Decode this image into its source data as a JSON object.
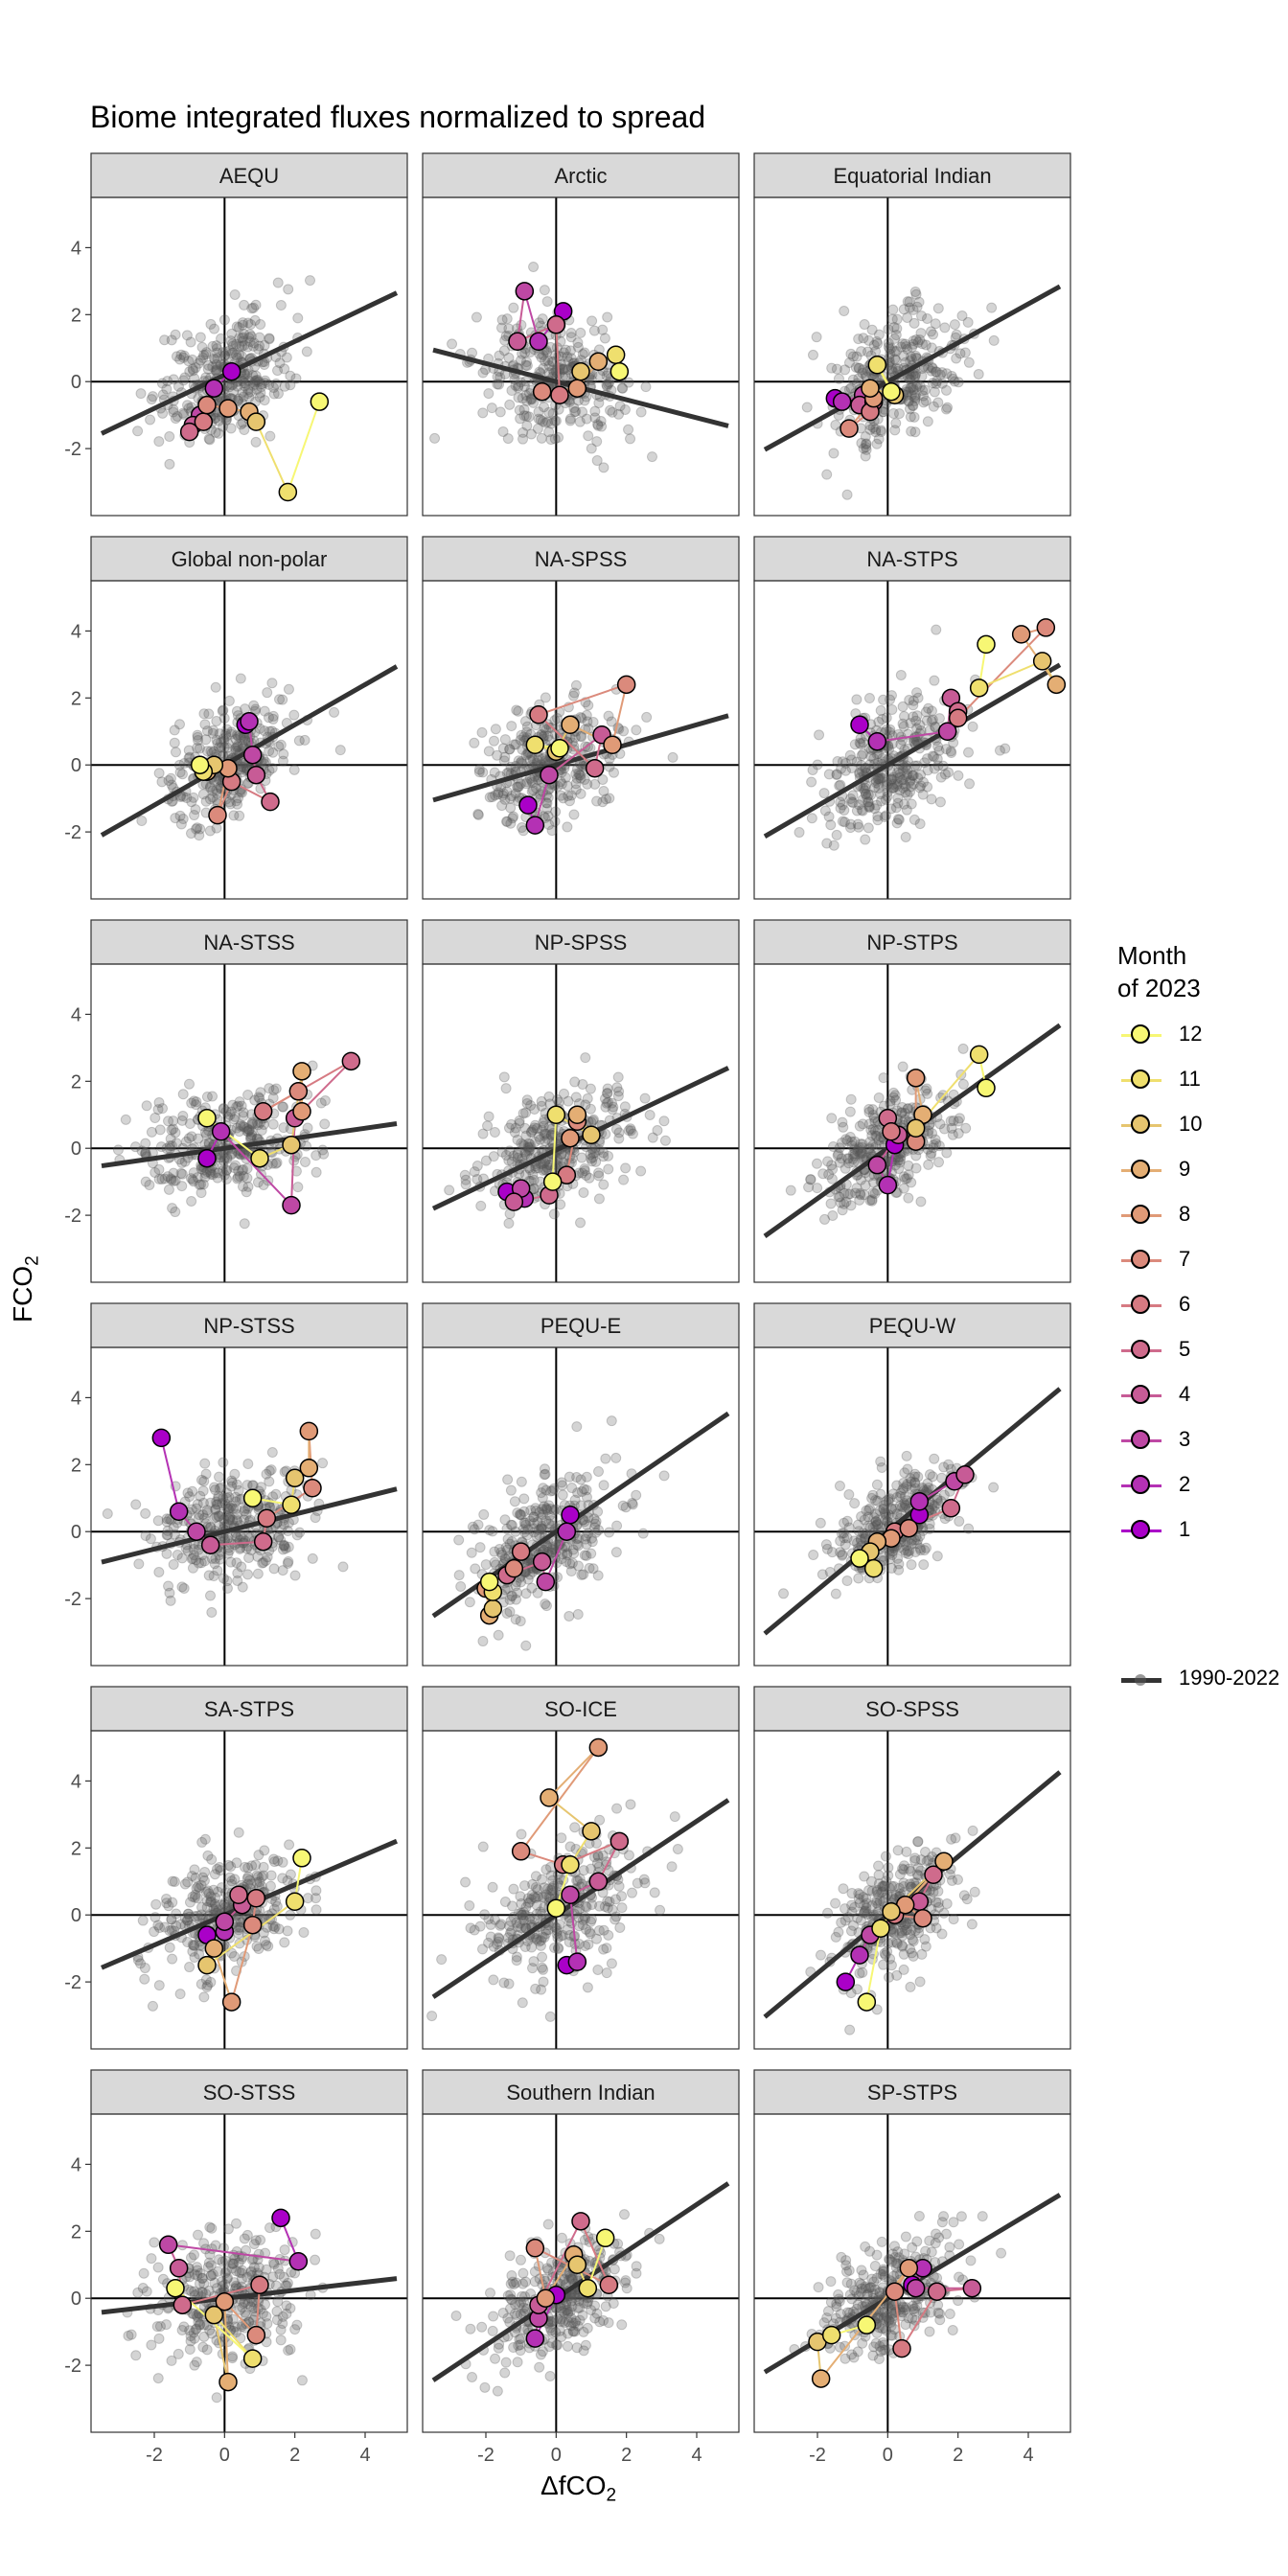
{
  "title": "Biome integrated fluxes normalized to spread",
  "ylabel": {
    "main": "FCO",
    "sub": "2"
  },
  "xlabel": {
    "main": "ΔfCO",
    "sub": "2"
  },
  "legend": {
    "title_line1": "Month",
    "title_line2": "of 2023",
    "months": [
      {
        "label": "12",
        "color": "#F7F774"
      },
      {
        "label": "11",
        "color": "#EFDF6E"
      },
      {
        "label": "10",
        "color": "#E6C56F"
      },
      {
        "label": "9",
        "color": "#E4AE74"
      },
      {
        "label": "8",
        "color": "#E09A77"
      },
      {
        "label": "7",
        "color": "#DB8A7C"
      },
      {
        "label": "6",
        "color": "#D67A82"
      },
      {
        "label": "5",
        "color": "#CF6B8C"
      },
      {
        "label": "4",
        "color": "#C75B96"
      },
      {
        "label": "3",
        "color": "#BE48A4"
      },
      {
        "label": "2",
        "color": "#B431B4"
      },
      {
        "label": "1",
        "color": "#AA00C8"
      }
    ],
    "reference_label": "1990-2022"
  },
  "chart_data": {
    "type": "scatter",
    "facets_layout": "6 rows x 3 columns",
    "xlim": [
      -3.8,
      5.2
    ],
    "ylim": [
      -4,
      5.5
    ],
    "x_ticks": [
      "-2",
      "0",
      "2",
      "4"
    ],
    "y_ticks": [
      "-2",
      "0",
      "2",
      "4"
    ],
    "grid": false,
    "legend_position": "right",
    "colors": {
      "points": "#555555",
      "regression": "#333333",
      "axes": "#000000",
      "strip": "#d9d9d9"
    },
    "panels": [
      {
        "name": "AEQU",
        "cloud": [
          0,
          0.1,
          0.9,
          1.1
        ],
        "fit": [
          0.5,
          0.2
        ],
        "path": [
          [
            0.2,
            0.3
          ],
          [
            -0.3,
            -0.2
          ],
          [
            -0.7,
            -1.0
          ],
          [
            -0.9,
            -1.3
          ],
          [
            -1.0,
            -1.5
          ],
          [
            -0.6,
            -1.2
          ],
          [
            -0.5,
            -0.7
          ],
          [
            0.1,
            -0.8
          ],
          [
            0.7,
            -0.9
          ],
          [
            0.9,
            -1.2
          ],
          [
            1.8,
            -3.3
          ],
          [
            2.7,
            -0.6
          ]
        ]
      },
      {
        "name": "Arctic",
        "cloud": [
          -0.2,
          0.1,
          1.0,
          1.1
        ],
        "fit": [
          -0.27,
          0.0
        ],
        "path": [
          [
            0.2,
            2.1
          ],
          [
            -0.5,
            1.2
          ],
          [
            -0.9,
            2.7
          ],
          [
            -1.1,
            1.2
          ],
          [
            0.0,
            1.7
          ],
          [
            0.1,
            -0.4
          ],
          [
            -0.4,
            -0.3
          ],
          [
            0.6,
            -0.2
          ],
          [
            1.2,
            0.6
          ],
          [
            0.7,
            0.3
          ],
          [
            1.7,
            0.8
          ],
          [
            1.8,
            0.3
          ]
        ]
      },
      {
        "name": "Equatorial Indian",
        "cloud": [
          0.2,
          0.2,
          0.9,
          1.1
        ],
        "fit": [
          0.58,
          0.0
        ],
        "path": [
          [
            -1.5,
            -0.5
          ],
          [
            -1.3,
            -0.6
          ],
          [
            -0.7,
            -0.4
          ],
          [
            -0.8,
            -0.7
          ],
          [
            -0.4,
            -0.6
          ],
          [
            -0.5,
            -0.9
          ],
          [
            -1.1,
            -1.4
          ],
          [
            -0.4,
            -0.5
          ],
          [
            -0.5,
            -0.2
          ],
          [
            0.2,
            -0.4
          ],
          [
            -0.3,
            0.5
          ],
          [
            0.1,
            -0.3
          ]
        ]
      },
      {
        "name": "Global non-polar",
        "cloud": [
          0.1,
          0.1,
          0.9,
          1.0
        ],
        "fit": [
          0.6,
          0.0
        ],
        "path": [
          [
            0.6,
            1.2
          ],
          [
            0.7,
            1.3
          ],
          [
            0.8,
            0.3
          ],
          [
            0.9,
            -0.3
          ],
          [
            1.3,
            -1.1
          ],
          [
            0.2,
            -0.5
          ],
          [
            -0.2,
            -1.5
          ],
          [
            0.1,
            -0.1
          ],
          [
            -0.5,
            -0.2
          ],
          [
            -0.3,
            0.0
          ],
          [
            -0.6,
            -0.2
          ],
          [
            -0.7,
            0.0
          ]
        ]
      },
      {
        "name": "NA-SPSS",
        "cloud": [
          -0.2,
          0.0,
          0.9,
          1.1
        ],
        "fit": [
          0.3,
          0.0
        ],
        "path": [
          [
            -0.8,
            -1.2
          ],
          [
            -0.6,
            -1.8
          ],
          [
            -0.2,
            -0.3
          ],
          [
            1.3,
            0.9
          ],
          [
            1.1,
            -0.1
          ],
          [
            -0.5,
            1.5
          ],
          [
            2.0,
            2.4
          ],
          [
            1.6,
            0.6
          ],
          [
            0.4,
            1.2
          ],
          [
            0.0,
            0.4
          ],
          [
            -0.6,
            0.6
          ],
          [
            0.1,
            0.5
          ]
        ]
      },
      {
        "name": "NA-STPS",
        "cloud": [
          0.1,
          0.0,
          1.0,
          1.1
        ],
        "fit": [
          0.61,
          0.0
        ],
        "path": [
          [
            -0.8,
            1.2
          ],
          [
            -0.3,
            0.7
          ],
          [
            1.7,
            1.0
          ],
          [
            1.8,
            2.0
          ],
          [
            2.0,
            1.6
          ],
          [
            2.0,
            1.4
          ],
          [
            4.5,
            4.1
          ],
          [
            3.8,
            3.9
          ],
          [
            4.8,
            2.4
          ],
          [
            4.4,
            3.1
          ],
          [
            2.6,
            2.3
          ],
          [
            2.8,
            3.6
          ]
        ]
      },
      {
        "name": "NA-STSS",
        "cloud": [
          0.0,
          0.1,
          1.2,
          1.0
        ],
        "fit": [
          0.15,
          0.0
        ],
        "path": [
          [
            -0.5,
            -0.3
          ],
          [
            -0.1,
            0.5
          ],
          [
            1.9,
            -1.7
          ],
          [
            2.0,
            0.9
          ],
          [
            3.6,
            2.6
          ],
          [
            1.1,
            1.1
          ],
          [
            2.1,
            1.7
          ],
          [
            2.2,
            1.1
          ],
          [
            2.2,
            2.3
          ],
          [
            1.9,
            0.1
          ],
          [
            1.0,
            -0.3
          ],
          [
            -0.5,
            0.9
          ]
        ]
      },
      {
        "name": "NP-SPSS",
        "cloud": [
          0.1,
          0.1,
          1.0,
          1.0
        ],
        "fit": [
          0.5,
          -0.05
        ],
        "path": [
          [
            -1.4,
            -1.3
          ],
          [
            -0.9,
            -1.5
          ],
          [
            -1.0,
            -1.2
          ],
          [
            -1.2,
            -1.6
          ],
          [
            -0.2,
            -1.4
          ],
          [
            0.3,
            -0.8
          ],
          [
            0.6,
            0.8
          ],
          [
            0.4,
            0.3
          ],
          [
            0.6,
            1.0
          ],
          [
            1.0,
            0.4
          ],
          [
            0.0,
            1.0
          ],
          [
            -0.1,
            -1.0
          ]
        ]
      },
      {
        "name": "NP-STPS",
        "cloud": [
          0.0,
          0.0,
          0.9,
          1.0
        ],
        "fit": [
          0.75,
          0.0
        ],
        "path": [
          [
            0.2,
            0.1
          ],
          [
            0.0,
            -1.1
          ],
          [
            -0.3,
            -0.5
          ],
          [
            0.3,
            0.4
          ],
          [
            0.0,
            0.9
          ],
          [
            0.1,
            0.5
          ],
          [
            0.8,
            0.2
          ],
          [
            0.8,
            2.1
          ],
          [
            1.0,
            1.0
          ],
          [
            0.8,
            0.6
          ],
          [
            2.6,
            2.8
          ],
          [
            2.8,
            1.8
          ]
        ]
      },
      {
        "name": "NP-STSS",
        "cloud": [
          0.2,
          0.1,
          1.1,
          1.0
        ],
        "fit": [
          0.26,
          0.0
        ],
        "path": [
          [
            -1.8,
            2.8
          ],
          [
            -1.3,
            0.6
          ],
          [
            -0.8,
            0.0
          ],
          [
            -0.4,
            -0.4
          ],
          [
            1.1,
            -0.3
          ],
          [
            1.2,
            0.4
          ],
          [
            2.5,
            1.3
          ],
          [
            2.4,
            3.0
          ],
          [
            2.4,
            1.9
          ],
          [
            2.0,
            1.6
          ],
          [
            1.9,
            0.8
          ],
          [
            0.8,
            1.0
          ]
        ]
      },
      {
        "name": "PEQU-E",
        "cloud": [
          -0.4,
          -0.3,
          1.0,
          1.1
        ],
        "fit": [
          0.72,
          0.0
        ],
        "path": [
          [
            0.4,
            0.5
          ],
          [
            0.3,
            0.0
          ],
          [
            -0.3,
            -1.5
          ],
          [
            -0.4,
            -0.9
          ],
          [
            -1.4,
            -1.3
          ],
          [
            -1.0,
            -0.6
          ],
          [
            -1.2,
            -1.1
          ],
          [
            -2.0,
            -1.7
          ],
          [
            -1.9,
            -2.5
          ],
          [
            -1.8,
            -2.3
          ],
          [
            -1.8,
            -1.8
          ],
          [
            -1.9,
            -1.5
          ]
        ]
      },
      {
        "name": "PEQU-W",
        "cloud": [
          0.3,
          0.3,
          0.9,
          0.9
        ],
        "fit": [
          0.87,
          0.0
        ],
        "path": [
          [
            0.9,
            0.5
          ],
          [
            0.9,
            0.9
          ],
          [
            1.9,
            1.5
          ],
          [
            2.2,
            1.7
          ],
          [
            1.8,
            0.7
          ],
          [
            0.2,
            0.0
          ],
          [
            0.6,
            0.1
          ],
          [
            0.1,
            -0.2
          ],
          [
            -0.3,
            -0.3
          ],
          [
            -0.5,
            -0.6
          ],
          [
            -0.4,
            -1.1
          ],
          [
            -0.8,
            -0.8
          ]
        ]
      },
      {
        "name": "SA-STPS",
        "cloud": [
          0.1,
          0.0,
          1.0,
          1.0
        ],
        "fit": [
          0.45,
          0.0
        ],
        "path": [
          [
            -0.5,
            -0.6
          ],
          [
            0.0,
            -0.5
          ],
          [
            0.0,
            -0.2
          ],
          [
            0.5,
            0.3
          ],
          [
            0.4,
            0.6
          ],
          [
            0.9,
            0.5
          ],
          [
            0.8,
            -0.3
          ],
          [
            0.2,
            -2.6
          ],
          [
            -0.3,
            -1.0
          ],
          [
            -0.5,
            -1.5
          ],
          [
            2.0,
            0.4
          ],
          [
            2.2,
            1.7
          ]
        ]
      },
      {
        "name": "SO-ICE",
        "cloud": [
          0.1,
          0.2,
          1.1,
          1.2
        ],
        "fit": [
          0.7,
          0.0
        ],
        "path": [
          [
            0.3,
            -1.5
          ],
          [
            0.6,
            -1.4
          ],
          [
            0.4,
            0.6
          ],
          [
            1.2,
            1.0
          ],
          [
            1.8,
            2.2
          ],
          [
            0.2,
            1.5
          ],
          [
            -1.0,
            1.9
          ],
          [
            1.2,
            5.0
          ],
          [
            -0.2,
            3.5
          ],
          [
            1.0,
            2.5
          ],
          [
            0.4,
            1.5
          ],
          [
            0.0,
            0.2
          ]
        ]
      },
      {
        "name": "SO-SPSS",
        "cloud": [
          0.2,
          0.0,
          0.9,
          1.0
        ],
        "fit": [
          0.87,
          0.0
        ],
        "path": [
          [
            -1.2,
            -2.0
          ],
          [
            -0.8,
            -1.2
          ],
          [
            -0.5,
            -0.6
          ],
          [
            0.9,
            0.4
          ],
          [
            1.3,
            1.2
          ],
          [
            0.2,
            0.0
          ],
          [
            1.0,
            -0.1
          ],
          [
            0.5,
            0.3
          ],
          [
            1.6,
            1.6
          ],
          [
            0.1,
            0.1
          ],
          [
            -0.2,
            -0.4
          ],
          [
            -0.6,
            -2.6
          ]
        ]
      },
      {
        "name": "SO-STSS",
        "cloud": [
          0.0,
          0.0,
          1.0,
          1.1
        ],
        "fit": [
          0.12,
          0.0
        ],
        "path": [
          [
            1.6,
            2.4
          ],
          [
            2.1,
            1.1
          ],
          [
            -1.6,
            1.6
          ],
          [
            -1.3,
            0.9
          ],
          [
            -1.2,
            -0.2
          ],
          [
            1.0,
            0.4
          ],
          [
            0.9,
            -1.1
          ],
          [
            0.0,
            -0.1
          ],
          [
            0.1,
            -2.5
          ],
          [
            -0.3,
            -0.5
          ],
          [
            0.8,
            -1.8
          ],
          [
            -1.4,
            0.3
          ]
        ]
      },
      {
        "name": "Southern Indian",
        "cloud": [
          0.0,
          0.0,
          1.0,
          1.0
        ],
        "fit": [
          0.7,
          0.0
        ],
        "path": [
          [
            0.0,
            0.1
          ],
          [
            -0.6,
            -1.2
          ],
          [
            -0.5,
            -0.6
          ],
          [
            -0.5,
            -0.2
          ],
          [
            0.7,
            2.3
          ],
          [
            1.5,
            0.4
          ],
          [
            -0.6,
            1.5
          ],
          [
            -0.3,
            0.0
          ],
          [
            0.5,
            1.3
          ],
          [
            0.6,
            1.0
          ],
          [
            0.9,
            0.3
          ],
          [
            1.4,
            1.8
          ]
        ]
      },
      {
        "name": "SP-STPS",
        "cloud": [
          0.0,
          0.0,
          1.0,
          1.0
        ],
        "fit": [
          0.63,
          0.0
        ],
        "path": [
          [
            0.7,
            0.4
          ],
          [
            1.0,
            0.9
          ],
          [
            0.8,
            0.3
          ],
          [
            2.4,
            0.3
          ],
          [
            1.4,
            0.2
          ],
          [
            0.4,
            -1.5
          ],
          [
            0.2,
            0.2
          ],
          [
            0.6,
            0.9
          ],
          [
            -1.9,
            -2.4
          ],
          [
            -2.0,
            -1.3
          ],
          [
            -1.6,
            -1.1
          ],
          [
            -0.6,
            -0.8
          ]
        ]
      }
    ]
  }
}
